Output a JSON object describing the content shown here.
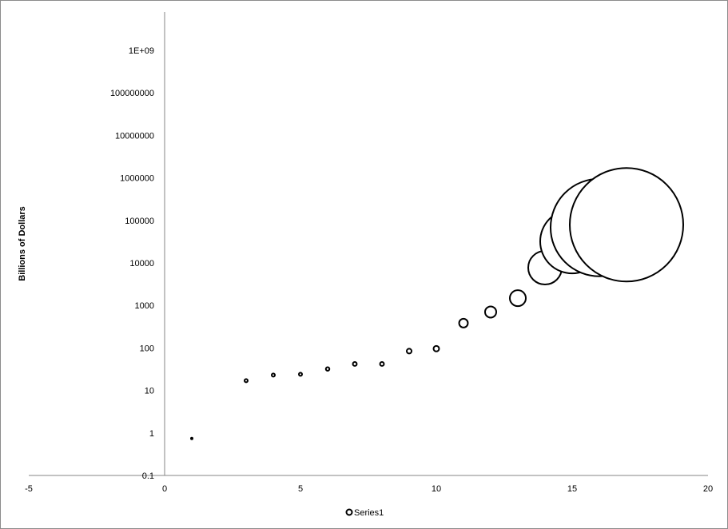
{
  "chart_data": {
    "type": "bubble",
    "title": "",
    "xlabel": "",
    "ylabel": "Billions of Dollars",
    "xlim": [
      -5,
      20
    ],
    "ylim": [
      0.1,
      1000000000
    ],
    "yscale": "log",
    "grid": false,
    "legend": "bottom",
    "x_ticks": [
      "-5",
      "0",
      "5",
      "10",
      "15",
      "20"
    ],
    "y_ticks": [
      "0.1",
      "1",
      "10",
      "100",
      "1000",
      "10000",
      "100000",
      "1000000",
      "10000000",
      "100000000",
      "1E+09"
    ],
    "series": [
      {
        "name": "Series1",
        "marker_fill": "#ffffff",
        "marker_stroke": "#000000",
        "x": [
          1,
          3,
          4,
          5,
          6,
          7,
          8,
          9,
          10,
          11,
          12,
          13,
          14,
          15,
          16,
          17
        ],
        "y": [
          0.74,
          17,
          23,
          24,
          32,
          42,
          42,
          84,
          96,
          383,
          700,
          1480,
          7700,
          32000,
          68000,
          79000
        ],
        "size": [
          1,
          4,
          4,
          4,
          5,
          6,
          6,
          9,
          12,
          30,
          49,
          100,
          441,
          1600,
          3721,
          5041
        ]
      }
    ]
  }
}
